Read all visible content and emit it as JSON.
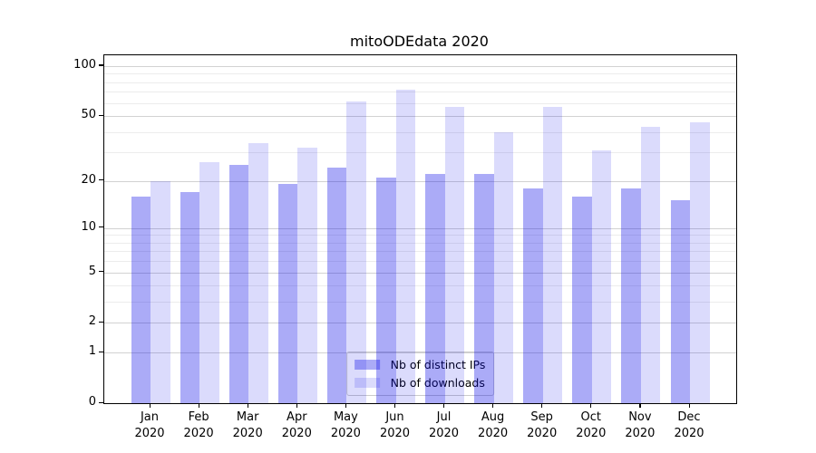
{
  "title": "mitoODEdata 2020",
  "chart_data": {
    "type": "bar",
    "title": "mitoODEdata 2020",
    "categories": [
      "Jan",
      "Feb",
      "Mar",
      "Apr",
      "May",
      "Jun",
      "Jul",
      "Aug",
      "Sep",
      "Oct",
      "Nov",
      "Dec"
    ],
    "year_line": "2020",
    "series": [
      {
        "id": "distinct-ips",
        "name": "Nb of distinct IPs",
        "color": "rgba(13,13,232,0.35)",
        "blended_hex": "#a6a6f2",
        "values": [
          16,
          17,
          25,
          19,
          24,
          21,
          22,
          22,
          18,
          16,
          18,
          15
        ]
      },
      {
        "id": "downloads",
        "name": "Nb of downloads",
        "color": "rgba(13,13,232,0.15)",
        "blended_hex": "#d9d9f8",
        "values": [
          20,
          26,
          34,
          32,
          61,
          72,
          57,
          40,
          57,
          31,
          43,
          46
        ]
      }
    ],
    "yscale": "log1p",
    "y_ticks": [
      100,
      50,
      20,
      10,
      5,
      2,
      1,
      0
    ],
    "y_minor_gridlines": [
      3,
      4,
      6,
      7,
      8,
      9,
      30,
      40,
      60,
      70,
      80,
      90
    ],
    "ylim": [
      0,
      116
    ],
    "xlabel": "",
    "ylabel": "",
    "grid": true,
    "legend_position": "lower center",
    "colors": {
      "major_grid": "#d2d2d2",
      "minor_grid": "#ececec",
      "axis": "#000000",
      "legend_border": "#cbcbcb"
    }
  }
}
